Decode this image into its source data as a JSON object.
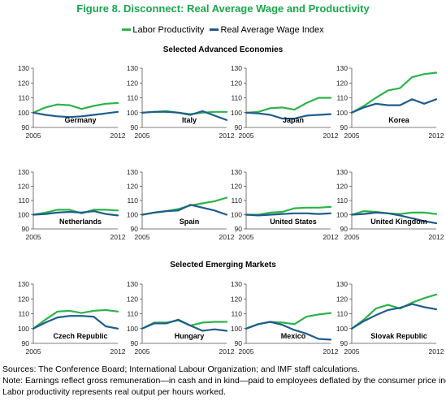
{
  "title": "Figure 8. Disconnect: Real Average Wage and Productivity",
  "legend": {
    "items": [
      {
        "label": "Labor Productivity",
        "color": "#2db34a"
      },
      {
        "label": "Real Average Wage Index",
        "color": "#1f5c8c"
      }
    ]
  },
  "sections": {
    "advanced": "Selected Advanced Economies",
    "emerging": "Selected Emerging Markets"
  },
  "footnotes": {
    "sources": "Sources: The Conference Board; International Labour Organization; and IMF staff calculations.",
    "note1": "Note: Earnings reflect gross remuneration—in cash and in kind—paid to employees deflated by the consumer price index.",
    "note2": "Labor productivity represents real output per hours worked."
  },
  "chart_data": [
    {
      "type": "line",
      "title": "Germany",
      "x": [
        2005,
        2006,
        2007,
        2008,
        2009,
        2010,
        2011,
        2012
      ],
      "x_tick_labels": [
        "2005",
        "2012"
      ],
      "ylim": [
        90,
        130
      ],
      "yticks": [
        90,
        100,
        110,
        120,
        130
      ],
      "series": [
        {
          "name": "Labor Productivity",
          "values": [
            100,
            103.5,
            105.5,
            105,
            102.5,
            104.5,
            106,
            106.5
          ]
        },
        {
          "name": "Real Average Wage Index",
          "values": [
            100,
            98.5,
            97.5,
            97,
            97.5,
            98.5,
            99.5,
            100.5
          ]
        }
      ]
    },
    {
      "type": "line",
      "title": "Italy",
      "x": [
        2005,
        2006,
        2007,
        2008,
        2009,
        2010,
        2011,
        2012
      ],
      "x_tick_labels": [
        "2005",
        "2012"
      ],
      "ylim": [
        90,
        130
      ],
      "yticks": [
        90,
        100,
        110,
        120,
        130
      ],
      "series": [
        {
          "name": "Labor Productivity",
          "values": [
            100,
            100.5,
            101,
            100,
            99,
            100,
            100.5,
            100.5
          ]
        },
        {
          "name": "Real Average Wage Index",
          "values": [
            100,
            100.5,
            100.5,
            100,
            98.5,
            101,
            98,
            95
          ]
        }
      ]
    },
    {
      "type": "line",
      "title": "Japan",
      "x": [
        2005,
        2006,
        2007,
        2008,
        2009,
        2010,
        2011,
        2012
      ],
      "x_tick_labels": [
        "2005",
        "2012"
      ],
      "ylim": [
        90,
        130
      ],
      "yticks": [
        90,
        100,
        110,
        120,
        130
      ],
      "series": [
        {
          "name": "Labor Productivity",
          "values": [
            100,
            100.5,
            103,
            103.5,
            102,
            106.5,
            110,
            110
          ]
        },
        {
          "name": "Real Average Wage Index",
          "values": [
            100,
            99.5,
            98.5,
            96,
            96,
            98,
            98.5,
            99
          ]
        }
      ]
    },
    {
      "type": "line",
      "title": "Korea",
      "x": [
        2005,
        2006,
        2007,
        2008,
        2009,
        2010,
        2011,
        2012
      ],
      "x_tick_labels": [
        "2005",
        "2012"
      ],
      "ylim": [
        90,
        130
      ],
      "yticks": [
        90,
        100,
        110,
        120,
        130
      ],
      "series": [
        {
          "name": "Labor Productivity",
          "values": [
            100,
            104.5,
            110,
            115,
            116.5,
            124,
            126,
            127
          ]
        },
        {
          "name": "Real Average Wage Index",
          "values": [
            100,
            103.5,
            106,
            105,
            105,
            109,
            106,
            109
          ]
        }
      ]
    },
    {
      "type": "line",
      "title": "Netherlands",
      "x": [
        2005,
        2006,
        2007,
        2008,
        2009,
        2010,
        2011,
        2012
      ],
      "x_tick_labels": [
        "2005",
        "2012"
      ],
      "ylim": [
        90,
        130
      ],
      "yticks": [
        90,
        100,
        110,
        120,
        130
      ],
      "series": [
        {
          "name": "Labor Productivity",
          "values": [
            100,
            101.5,
            103.5,
            103.5,
            101,
            103.5,
            103.5,
            103
          ]
        },
        {
          "name": "Real Average Wage Index",
          "values": [
            100,
            100.5,
            101.5,
            102,
            101.5,
            102.5,
            100.5,
            99.5
          ]
        }
      ]
    },
    {
      "type": "line",
      "title": "Spain",
      "x": [
        2005,
        2006,
        2007,
        2008,
        2009,
        2010,
        2011,
        2012
      ],
      "x_tick_labels": [
        "2005",
        "2012"
      ],
      "ylim": [
        90,
        130
      ],
      "yticks": [
        90,
        100,
        110,
        120,
        130
      ],
      "series": [
        {
          "name": "Labor Productivity",
          "values": [
            100,
            101.5,
            102.5,
            104,
            106.5,
            108,
            109.5,
            112
          ]
        },
        {
          "name": "Real Average Wage Index",
          "values": [
            100,
            101.5,
            102.5,
            103,
            107,
            105,
            103,
            100
          ]
        }
      ]
    },
    {
      "type": "line",
      "title": "United States",
      "x": [
        2005,
        2006,
        2007,
        2008,
        2009,
        2010,
        2011,
        2012
      ],
      "x_tick_labels": [
        "2005",
        "2012"
      ],
      "ylim": [
        90,
        130
      ],
      "yticks": [
        90,
        100,
        110,
        120,
        130
      ],
      "series": [
        {
          "name": "Labor Productivity",
          "values": [
            100,
            100,
            101.5,
            102,
            104.5,
            105,
            105,
            105.5
          ]
        },
        {
          "name": "Real Average Wage Index",
          "values": [
            100,
            99.5,
            100,
            100.5,
            101,
            101,
            100.5,
            101
          ]
        }
      ]
    },
    {
      "type": "line",
      "title": "United Kingdom",
      "x": [
        2005,
        2006,
        2007,
        2008,
        2009,
        2010,
        2011,
        2012
      ],
      "x_tick_labels": [
        "2005",
        "2012"
      ],
      "ylim": [
        90,
        130
      ],
      "yticks": [
        90,
        100,
        110,
        120,
        130
      ],
      "series": [
        {
          "name": "Labor Productivity",
          "values": [
            100,
            102.5,
            102,
            101,
            100.5,
            101.5,
            101.5,
            100.5
          ]
        },
        {
          "name": "Real Average Wage Index",
          "values": [
            100,
            100.5,
            101.5,
            101,
            99.5,
            97.5,
            95.5,
            94
          ]
        }
      ]
    },
    {
      "type": "line",
      "title": "Czech Republic",
      "x": [
        2005,
        2006,
        2007,
        2008,
        2009,
        2010,
        2011,
        2012
      ],
      "x_tick_labels": [
        "2005",
        "2012"
      ],
      "ylim": [
        90,
        130
      ],
      "yticks": [
        90,
        100,
        110,
        120,
        130
      ],
      "series": [
        {
          "name": "Labor Productivity",
          "values": [
            100,
            106,
            111.5,
            112,
            110.5,
            112,
            112.5,
            111.5
          ]
        },
        {
          "name": "Real Average Wage Index",
          "values": [
            100,
            104,
            107.5,
            108.5,
            108.5,
            108,
            101.5,
            100
          ]
        }
      ]
    },
    {
      "type": "line",
      "title": "Hungary",
      "x": [
        2005,
        2006,
        2007,
        2008,
        2009,
        2010,
        2011,
        2012
      ],
      "x_tick_labels": [
        "2005",
        "2012"
      ],
      "ylim": [
        90,
        130
      ],
      "yticks": [
        90,
        100,
        110,
        120,
        130
      ],
      "series": [
        {
          "name": "Labor Productivity",
          "values": [
            100,
            104,
            104,
            105.5,
            102,
            104,
            104.5,
            104.5
          ]
        },
        {
          "name": "Real Average Wage Index",
          "values": [
            100,
            103.5,
            103.5,
            106,
            102,
            98.5,
            99.5,
            98.5
          ]
        }
      ]
    },
    {
      "type": "line",
      "title": "Mexico",
      "x": [
        2005,
        2006,
        2007,
        2008,
        2009,
        2010,
        2011,
        2012
      ],
      "x_tick_labels": [
        "2005",
        "2012"
      ],
      "ylim": [
        90,
        130
      ],
      "yticks": [
        90,
        100,
        110,
        120,
        130
      ],
      "series": [
        {
          "name": "Labor Productivity",
          "values": [
            100,
            103,
            104.5,
            104,
            103,
            108,
            109.5,
            110.5
          ]
        },
        {
          "name": "Real Average Wage Index",
          "values": [
            100,
            103,
            104.5,
            102.5,
            99,
            96.5,
            93,
            92.5
          ]
        }
      ]
    },
    {
      "type": "line",
      "title": "Slovak Republic",
      "x": [
        2005,
        2006,
        2007,
        2008,
        2009,
        2010,
        2011,
        2012
      ],
      "x_tick_labels": [
        "2005",
        "2012"
      ],
      "ylim": [
        90,
        130
      ],
      "yticks": [
        90,
        100,
        110,
        120,
        130
      ],
      "series": [
        {
          "name": "Labor Productivity",
          "values": [
            100,
            106,
            113.5,
            116,
            113.5,
            117.5,
            120.5,
            123
          ]
        },
        {
          "name": "Real Average Wage Index",
          "values": [
            100,
            105,
            109,
            112.5,
            114,
            116.5,
            114.5,
            113
          ]
        }
      ]
    }
  ]
}
